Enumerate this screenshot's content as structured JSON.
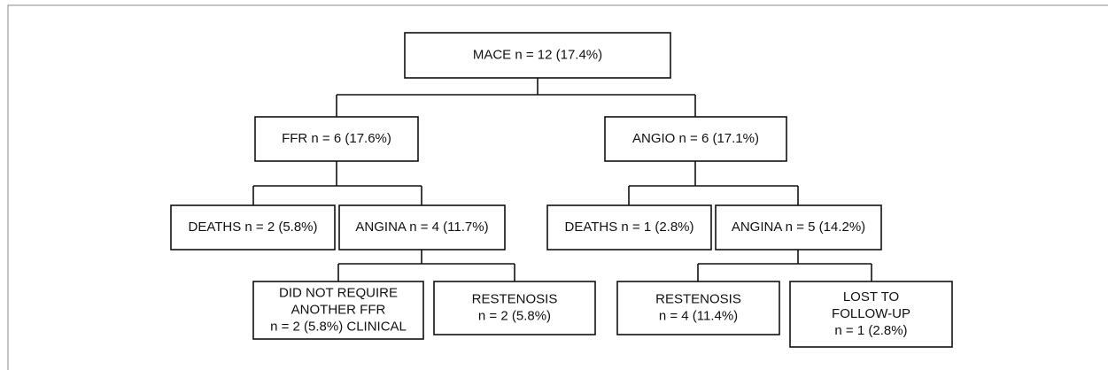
{
  "nodes": [
    {
      "lines": [
        "MACE n = 12 (17.4%)"
      ]
    },
    {
      "lines": [
        "FFR n = 6 (17.6%)"
      ]
    },
    {
      "lines": [
        "ANGIO n = 6 (17.1%)"
      ]
    },
    {
      "lines": [
        "DEATHS n = 2 (5.8%)"
      ]
    },
    {
      "lines": [
        "ANGINA n = 4 (11.7%)"
      ]
    },
    {
      "lines": [
        "DEATHS n = 1 (2.8%)"
      ]
    },
    {
      "lines": [
        "ANGINA n = 5 (14.2%)"
      ]
    },
    {
      "lines": [
        "DID NOT REQUIRE",
        "ANOTHER FFR",
        "n = 2 (5.8%) CLINICAL"
      ]
    },
    {
      "lines": [
        "RESTENOSIS",
        "n = 2 (5.8%)"
      ]
    },
    {
      "lines": [
        "RESTENOSIS",
        "n = 4 (11.4%)"
      ]
    },
    {
      "lines": [
        "LOST TO",
        "FOLLOW-UP",
        "n = 1 (2.8%)"
      ]
    }
  ]
}
